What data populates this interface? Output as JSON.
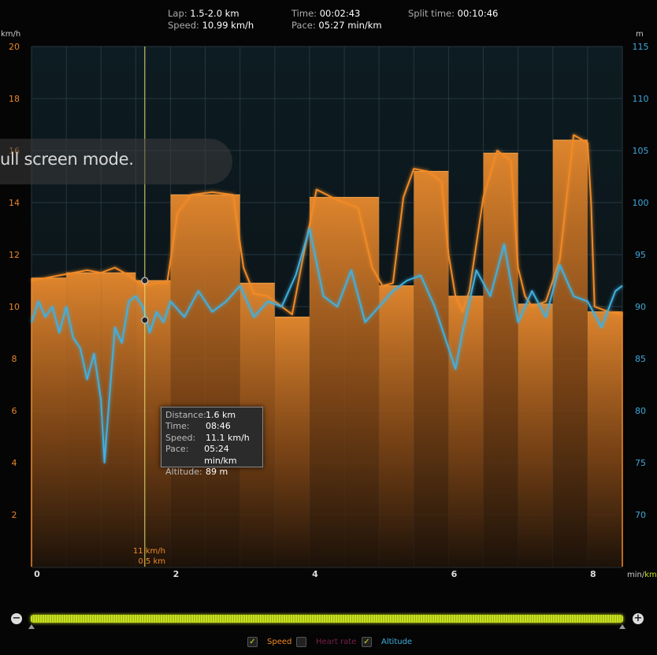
{
  "header": {
    "lap_label": "Lap:",
    "lap_value": "1.5-2.0 km",
    "speed_label": "Speed:",
    "speed_value": "10.99 km/h",
    "time_label": "Time:",
    "time_value": "00:02:43",
    "pace_label": "Pace:",
    "pace_value": "05:27 min/km",
    "split_label": "Split time:",
    "split_value": "00:10:46"
  },
  "units": {
    "left": "km/h",
    "right": "m",
    "x_min": "min/",
    "x_km": "km"
  },
  "toast_text": "ull screen mode.",
  "tooltip": {
    "rows": [
      {
        "k": "Distance:",
        "v": "1.6 km"
      },
      {
        "k": "Time:",
        "v": "08:46"
      },
      {
        "k": "Speed:",
        "v": "11.1 km/h"
      },
      {
        "k": "Pace:",
        "v": "05:24 min/km"
      },
      {
        "k": "Altitude:",
        "v": "89 m"
      }
    ]
  },
  "marker": {
    "speed_text": "11 km/h",
    "dist_text": "0.5 km",
    "x_km": 1.63
  },
  "legend": {
    "speed": "Speed",
    "heart_rate": "Heart rate",
    "altitude": "Altitude",
    "speed_checked": true,
    "heart_checked": false,
    "altitude_checked": true
  },
  "colors": {
    "speed": "#f08a28",
    "altitude": "#3fb0e0",
    "heart": "#7a1f4a",
    "grid": "#25373f",
    "slider": "#c8e020"
  },
  "chart_data": {
    "type": "line",
    "x_unit": "km",
    "xlim": [
      0,
      8.5
    ],
    "x_ticks": [
      0,
      2,
      4,
      6,
      8
    ],
    "y_left": {
      "label": "km/h",
      "lim": [
        0,
        20
      ],
      "ticks": [
        2,
        4,
        6,
        8,
        10,
        12,
        14,
        16,
        18,
        20
      ]
    },
    "y_right": {
      "label": "m",
      "lim": [
        65,
        115
      ],
      "ticks": [
        70,
        75,
        80,
        85,
        90,
        95,
        100,
        105,
        110,
        115
      ]
    },
    "lap_bars": {
      "name": "Speed (lap average)",
      "edges": [
        0,
        0.5,
        1.0,
        1.5,
        2.0,
        3.0,
        3.5,
        4.0,
        5.0,
        5.5,
        6.0,
        6.5,
        7.0,
        7.5,
        8.0,
        8.5
      ],
      "values": [
        11.1,
        11.3,
        11.3,
        11.0,
        14.3,
        10.9,
        9.6,
        14.2,
        10.8,
        15.2,
        10.4,
        15.9,
        10.1,
        16.4,
        9.8
      ]
    },
    "series": [
      {
        "name": "Speed",
        "axis": "left",
        "x": [
          0,
          0.2,
          0.4,
          0.6,
          0.8,
          1.0,
          1.2,
          1.4,
          1.6,
          1.8,
          1.95,
          2.1,
          2.3,
          2.6,
          2.9,
          3.05,
          3.2,
          3.4,
          3.6,
          3.75,
          3.9,
          4.1,
          4.4,
          4.7,
          4.9,
          5.05,
          5.2,
          5.35,
          5.5,
          5.7,
          5.9,
          6.0,
          6.1,
          6.2,
          6.3,
          6.5,
          6.7,
          6.9,
          7.0,
          7.1,
          7.2,
          7.4,
          7.6,
          7.8,
          8.0,
          8.05,
          8.1,
          8.3,
          8.5
        ],
        "y": [
          11.0,
          11.1,
          11.2,
          11.3,
          11.4,
          11.3,
          11.5,
          11.2,
          10.8,
          10.9,
          10.9,
          13.6,
          14.3,
          14.4,
          14.3,
          11.5,
          10.5,
          10.4,
          10.0,
          9.7,
          11.8,
          14.5,
          14.1,
          13.8,
          11.5,
          10.8,
          10.9,
          14.2,
          15.3,
          15.2,
          14.8,
          12.0,
          10.4,
          9.8,
          10.6,
          14.2,
          16.0,
          15.6,
          11.5,
          10.4,
          10.0,
          10.2,
          11.8,
          16.6,
          16.3,
          14.0,
          10.0,
          9.8,
          9.7
        ]
      },
      {
        "name": "Altitude",
        "axis": "right",
        "x": [
          0,
          0.1,
          0.2,
          0.3,
          0.4,
          0.5,
          0.6,
          0.7,
          0.8,
          0.9,
          1.0,
          1.05,
          1.1,
          1.2,
          1.3,
          1.4,
          1.5,
          1.6,
          1.7,
          1.8,
          1.9,
          2.0,
          2.2,
          2.4,
          2.6,
          2.8,
          3.0,
          3.2,
          3.4,
          3.6,
          3.8,
          4.0,
          4.2,
          4.4,
          4.6,
          4.8,
          5.0,
          5.2,
          5.4,
          5.6,
          5.8,
          6.0,
          6.1,
          6.2,
          6.4,
          6.6,
          6.8,
          7.0,
          7.2,
          7.4,
          7.6,
          7.8,
          8.0,
          8.2,
          8.4,
          8.5
        ],
        "y": [
          88.5,
          90.5,
          89.0,
          90.0,
          87.5,
          90.0,
          87.0,
          86.0,
          83.0,
          85.5,
          81.0,
          75.0,
          79.5,
          88.0,
          86.5,
          90.5,
          91.0,
          90.0,
          87.5,
          89.5,
          88.5,
          90.5,
          89.0,
          91.5,
          89.5,
          90.5,
          92.0,
          89.0,
          90.5,
          90.0,
          93.0,
          97.5,
          91.0,
          90.0,
          93.5,
          88.5,
          90.0,
          91.5,
          92.5,
          93.0,
          90.0,
          86.0,
          84.0,
          87.5,
          93.5,
          91.0,
          96.0,
          88.5,
          91.5,
          89.0,
          94.0,
          91.0,
          90.5,
          88.0,
          91.5,
          92.0
        ]
      }
    ]
  }
}
